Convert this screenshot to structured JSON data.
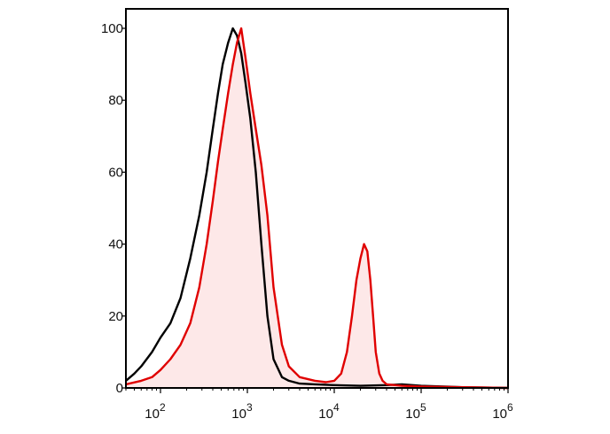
{
  "chart_data": {
    "type": "area",
    "x_scale": "log",
    "xlim": [
      40,
      1000000
    ],
    "ylim": [
      0,
      100
    ],
    "y_ticks": [
      {
        "label": "0",
        "value": 0
      },
      {
        "label": "20",
        "value": 20
      },
      {
        "label": "40",
        "value": 40
      },
      {
        "label": "60",
        "value": 60
      },
      {
        "label": "80",
        "value": 80
      },
      {
        "label": "100",
        "value": 100
      }
    ],
    "x_ticks": [
      {
        "base": "10",
        "exp": "2",
        "value": 100
      },
      {
        "base": "10",
        "exp": "3",
        "value": 1000
      },
      {
        "base": "10",
        "exp": "4",
        "value": 10000
      },
      {
        "base": "10",
        "exp": "5",
        "value": 100000
      },
      {
        "base": "10",
        "exp": "6",
        "value": 1000000
      }
    ],
    "series": [
      {
        "color": "#000000",
        "fill": "none",
        "x": [
          40,
          50,
          60,
          80,
          100,
          130,
          170,
          220,
          280,
          340,
          400,
          460,
          520,
          600,
          680,
          760,
          850,
          950,
          1080,
          1250,
          1450,
          1700,
          2000,
          2500,
          3000,
          4000,
          6000,
          10000,
          20000,
          40000,
          60000,
          100000,
          300000,
          1000000
        ],
        "y": [
          2,
          4,
          6,
          10,
          14,
          18,
          25,
          36,
          48,
          60,
          72,
          82,
          90,
          96,
          100,
          98,
          93,
          85,
          75,
          60,
          40,
          20,
          8,
          3,
          2,
          1.2,
          1,
          0.8,
          0.6,
          0.8,
          1,
          0.6,
          0.2,
          0
        ]
      },
      {
        "color": "#e00000",
        "fill": "#fde8e8",
        "x": [
          40,
          60,
          80,
          100,
          130,
          170,
          220,
          280,
          340,
          400,
          460,
          520,
          600,
          680,
          760,
          850,
          950,
          1080,
          1250,
          1450,
          1700,
          2000,
          2500,
          3000,
          4000,
          6000,
          8000,
          10000,
          12000,
          14000,
          16000,
          18000,
          20000,
          22000,
          24000,
          26000,
          28000,
          30000,
          33000,
          36000,
          40000,
          50000,
          60000,
          100000,
          300000,
          1000000
        ],
        "y": [
          1,
          2,
          3,
          5,
          8,
          12,
          18,
          28,
          40,
          52,
          63,
          72,
          82,
          90,
          96,
          100,
          92,
          82,
          72,
          62,
          48,
          28,
          12,
          6,
          3,
          2,
          1.6,
          2,
          4,
          10,
          20,
          30,
          36,
          40,
          38,
          30,
          20,
          10,
          4,
          2,
          1,
          0.8,
          0.6,
          0.4,
          0.2,
          0
        ]
      }
    ]
  }
}
